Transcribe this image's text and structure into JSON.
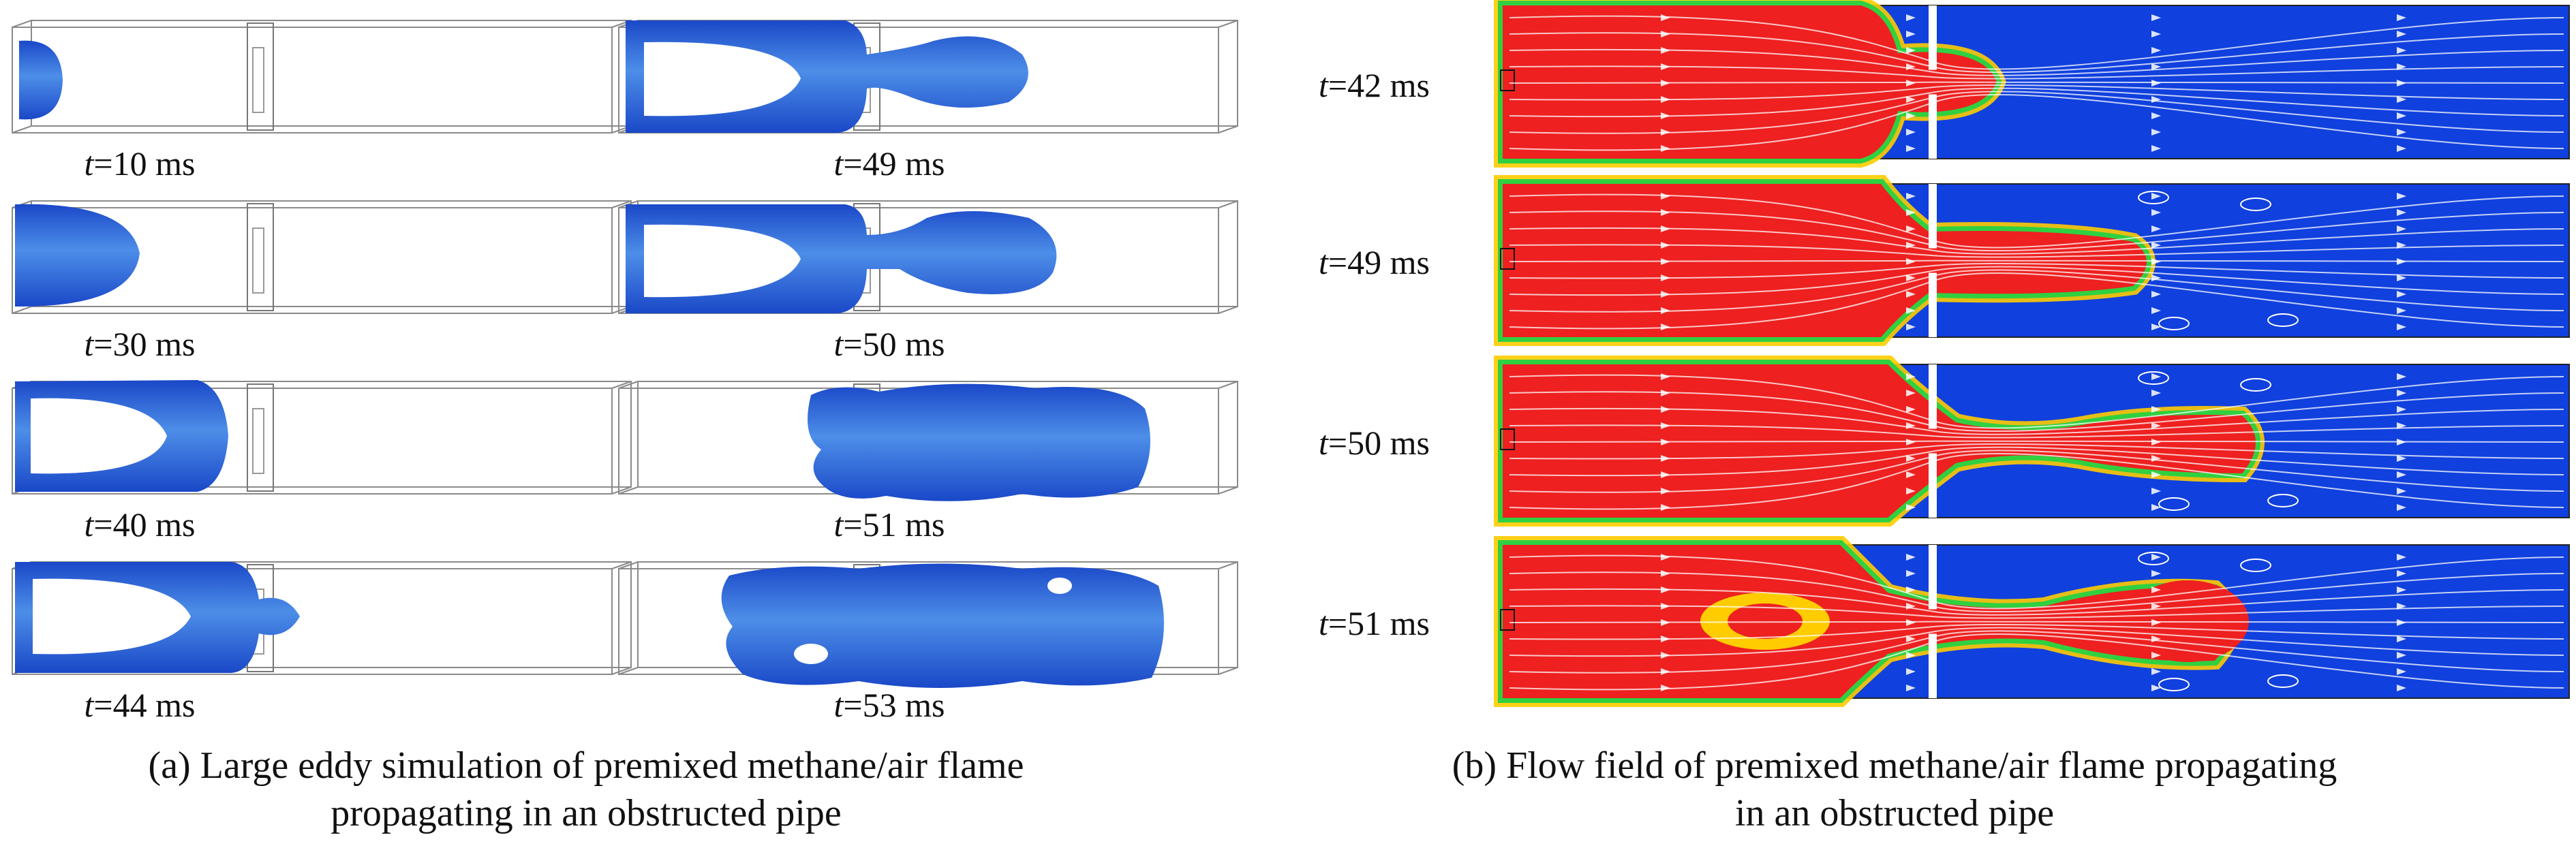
{
  "panel_a": {
    "caption_line1": "(a) Large eddy simulation of premixed methane/air flame",
    "caption_line2": "propagating in an obstructed pipe",
    "left_column": [
      {
        "t": "t",
        "rest": "=10 ms"
      },
      {
        "t": "t",
        "rest": "=30 ms"
      },
      {
        "t": "t",
        "rest": "=40 ms"
      },
      {
        "t": "t",
        "rest": "=44 ms"
      }
    ],
    "right_column": [
      {
        "t": "t",
        "rest": "=49 ms"
      },
      {
        "t": "t",
        "rest": "=50 ms"
      },
      {
        "t": "t",
        "rest": "=51 ms"
      },
      {
        "t": "t",
        "rest": "=53 ms"
      }
    ],
    "flame_color": "#2a5fd6"
  },
  "panel_b": {
    "caption_line1": "(b) Flow field of premixed methane/air flame propagating",
    "caption_line2": "in an obstructed pipe",
    "rows": [
      {
        "t": "t",
        "rest": "=42 ms"
      },
      {
        "t": "t",
        "rest": "=49 ms"
      },
      {
        "t": "t",
        "rest": "=50 ms"
      },
      {
        "t": "t",
        "rest": "=51 ms"
      }
    ],
    "burned_color": "#ee2020",
    "unburned_color": "#1040dd"
  }
}
